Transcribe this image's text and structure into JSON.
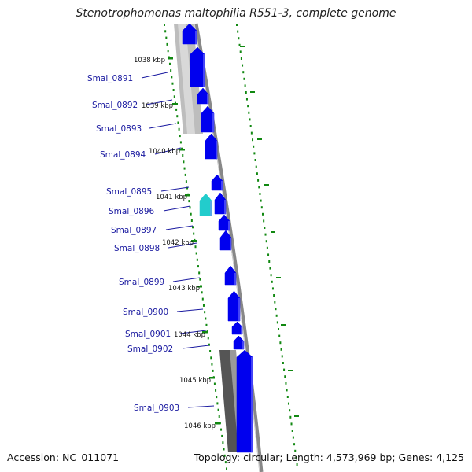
{
  "title": "Stenotrophomonas maltophilia R551-3, complete genome",
  "footer": {
    "accession": "Accession: NC_011071",
    "summary": "Topology: circular; Length: 4,573,969 bp; Genes: 4,125"
  },
  "colors": {
    "forward_gene": "#0000ee",
    "rna_gene": "#22cccc",
    "label_text": "#1a1aa0",
    "tick_green": "#118811",
    "backbone": "#888888"
  },
  "genes": [
    {
      "id": "Smal_0891"
    },
    {
      "id": "Smal_0892"
    },
    {
      "id": "Smal_0893"
    },
    {
      "id": "Smal_0894"
    },
    {
      "id": "Smal_0895"
    },
    {
      "id": "Smal_0896"
    },
    {
      "id": "Smal_0897"
    },
    {
      "id": "Smal_0898"
    },
    {
      "id": "Smal_0899"
    },
    {
      "id": "Smal_0900"
    },
    {
      "id": "Smal_0901"
    },
    {
      "id": "Smal_0902"
    },
    {
      "id": "Smal_0903"
    }
  ],
  "kbp_ticks": [
    "1038 kbp",
    "1039 kbp",
    "1040 kbp",
    "1041 kbp",
    "1042 kbp",
    "1043 kbp",
    "1044 kbp",
    "1045 kbp",
    "1046 kbp"
  ]
}
